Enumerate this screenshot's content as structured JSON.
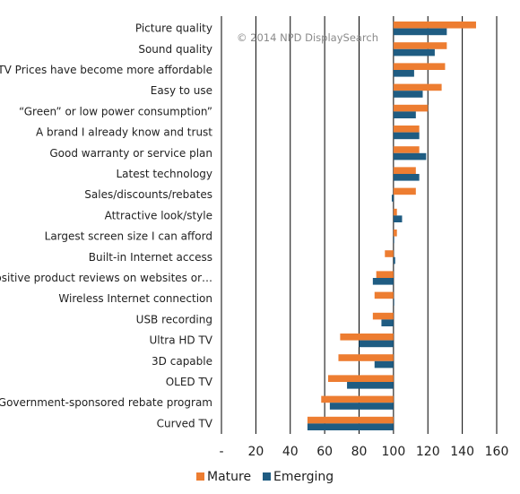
{
  "chart_data": {
    "type": "bar",
    "orientation": "horizontal",
    "watermark": "© 2014 NPD DisplaySearch",
    "categories": [
      "Picture quality",
      "Sound quality",
      "TV Prices have become more affordable",
      "Easy to use",
      "“Green” or low power consumption”",
      "A brand I already know and trust",
      "Good warranty or service plan",
      "Latest technology",
      "Sales/discounts/rebates",
      "Attractive look/style",
      "Largest screen size I can afford",
      "Built-in Internet access",
      "Positive product reviews on websites or…",
      "Wireless Internet connection",
      "USB recording",
      "Ultra HD TV",
      "3D capable",
      "OLED TV",
      "Government-sponsored rebate program",
      "Curved TV"
    ],
    "series": [
      {
        "name": "Mature",
        "color": "#ED7D31",
        "values": [
          148,
          131,
          130,
          128,
          120,
          115,
          115,
          113,
          113,
          102,
          102,
          95,
          90,
          89,
          88,
          69,
          68,
          62,
          58,
          50
        ]
      },
      {
        "name": "Emerging",
        "color": "#1F5C82",
        "values": [
          131,
          124,
          112,
          117,
          113,
          115,
          119,
          115,
          99,
          105,
          100,
          101,
          88,
          100,
          93,
          80,
          89,
          73,
          63,
          50
        ]
      }
    ],
    "xlim": [
      0,
      160
    ],
    "xticks": [
      0,
      20,
      40,
      60,
      80,
      100,
      120,
      140,
      160
    ],
    "xtick_labels": [
      "-",
      "20",
      "40",
      "60",
      "80",
      "100",
      "120",
      "140",
      "160"
    ],
    "baseline": 100,
    "grid": true,
    "legend_position": "bottom"
  }
}
